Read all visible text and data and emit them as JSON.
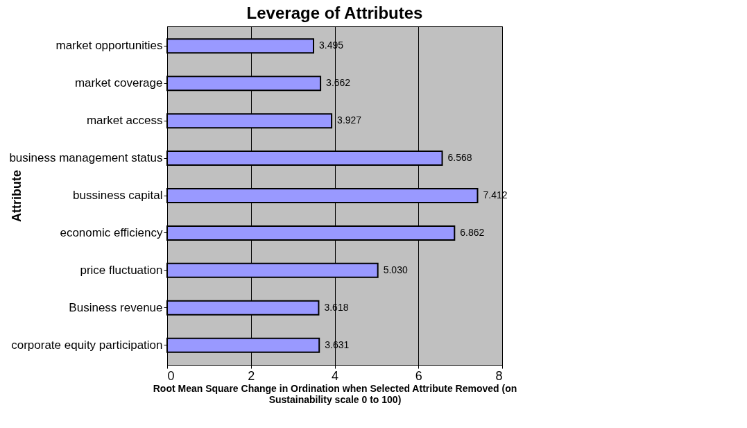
{
  "chart_data": {
    "type": "bar",
    "orientation": "horizontal",
    "title": "Leverage of Attributes",
    "xlabel": "Root Mean Square Change in Ordination when Selected Attribute Removed (on Sustainability scale 0 to 100)",
    "ylabel": "Attribute",
    "categories": [
      "market opportunities",
      "market coverage",
      "market access",
      "business management status",
      "bussiness capital",
      "economic efficiency",
      "price fluctuation",
      "Business revenue",
      "corporate equity participation"
    ],
    "series": [
      {
        "color": "#9999ff",
        "values": [
          3.495,
          3.662,
          3.927,
          6.568,
          7.412,
          6.862,
          5.03,
          3.618,
          3.631
        ],
        "value_labels": [
          "3.495",
          "3.662",
          "3.927",
          "6.568",
          "7.412",
          "6.862",
          "5.030",
          "3.618",
          "3.631"
        ]
      }
    ],
    "xlim": [
      0,
      8
    ],
    "xticks": [
      0,
      2,
      4,
      6,
      8
    ],
    "grid": "x"
  }
}
